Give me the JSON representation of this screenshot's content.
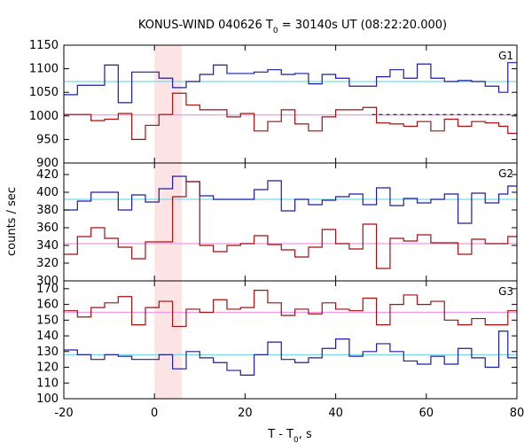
{
  "chart_data": {
    "type": "line",
    "title": "KONUS-WIND 040626 T",
    "title_sub": "0",
    "title_rest": " = 30140s UT (08:22:20.000)",
    "xlabel": "T - T",
    "xlabel_sub": "0",
    "xlabel_rest": ", s",
    "ylabel": "counts / sec",
    "xlim": [
      -20,
      80
    ],
    "x_ticks": [
      -20,
      0,
      20,
      40,
      60,
      80
    ],
    "x_tick_labels": [
      "-20",
      "0",
      "20",
      "40",
      "60",
      "80"
    ],
    "highlight_interval": [
      0,
      6
    ],
    "colors": {
      "red": "#a50f0f",
      "blue": "#1c1ca3",
      "cyan": "#7ad9e8",
      "pink": "#ee9ae8",
      "highlight": "#fde4e4"
    },
    "bin_edges": [
      -20,
      -17,
      -14,
      -11,
      -8,
      -5,
      -2,
      1,
      4,
      7,
      10,
      13,
      16,
      19,
      22,
      25,
      28,
      31,
      34,
      37,
      40,
      43,
      46,
      49,
      52,
      55,
      58,
      61,
      64,
      67,
      70,
      73,
      76,
      78,
      80
    ],
    "panels": [
      {
        "name": "G1",
        "ylim": [
          900,
          1150
        ],
        "y_ticks": [
          900,
          950,
          1000,
          1050,
          1100,
          1150
        ],
        "y_tick_labels": [
          "900",
          "950",
          "1000",
          "1050",
          "1100",
          "1150"
        ],
        "series": [
          {
            "name": "blue",
            "color": "#1c1ca3",
            "background": 1073,
            "background_color": "#7ad9e8",
            "values": [
              1045,
              1065,
              1065,
              1108,
              1028,
              1093,
              1093,
              1080,
              1060,
              1073,
              1088,
              1108,
              1090,
              1090,
              1093,
              1098,
              1088,
              1090,
              1068,
              1088,
              1080,
              1063,
              1063,
              1083,
              1098,
              1080,
              1110,
              1080,
              1073,
              1075,
              1073,
              1063,
              1050,
              1113
            ]
          },
          {
            "name": "red",
            "color": "#a50f0f",
            "background": 1002,
            "background_color": "#ee9ae8",
            "values": [
              1003,
              1003,
              990,
              993,
              1005,
              950,
              980,
              1003,
              1048,
              1023,
              1013,
              1013,
              998,
              1005,
              968,
              988,
              1013,
              983,
              968,
              998,
              1013,
              1013,
              1018,
              985,
              983,
              978,
              988,
              968,
              993,
              978,
              988,
              985,
              978,
              963
            ],
            "dashed_from": 48,
            "dashed_value": 1003
          }
        ]
      },
      {
        "name": "G2",
        "ylim": [
          300,
          433
        ],
        "y_ticks": [
          300,
          320,
          340,
          360,
          380,
          400,
          420
        ],
        "y_tick_labels": [
          "300",
          "320",
          "340",
          "360",
          "380",
          "400",
          "420"
        ],
        "series": [
          {
            "name": "blue",
            "color": "#1c1ca3",
            "background": 392,
            "background_color": "#7ad9e8",
            "values": [
              380,
              390,
              400,
              400,
              380,
              397,
              389,
              404,
              418,
              412,
              396,
              392,
              392,
              392,
              403,
              413,
              379,
              392,
              386,
              391,
              395,
              398,
              386,
              405,
              385,
              393,
              388,
              392,
              398,
              365,
              399,
              388,
              398,
              407
            ]
          },
          {
            "name": "red",
            "color": "#a50f0f",
            "background": 342,
            "background_color": "#ee9ae8",
            "values": [
              330,
              350,
              360,
              348,
              338,
              325,
              344,
              344,
              395,
              412,
              340,
              333,
              340,
              342,
              351,
              341,
              335,
              327,
              338,
              358,
              342,
              336,
              364,
              314,
              348,
              345,
              352,
              343,
              343,
              330,
              347,
              342,
              342,
              350
            ]
          }
        ]
      },
      {
        "name": "G3",
        "ylim": [
          100,
          175
        ],
        "y_ticks": [
          100,
          110,
          120,
          130,
          140,
          150,
          160,
          170
        ],
        "y_tick_labels": [
          "100",
          "110",
          "120",
          "130",
          "140",
          "150",
          "160",
          "170"
        ],
        "series": [
          {
            "name": "red",
            "color": "#a50f0f",
            "background": 155,
            "background_color": "#ee9ae8",
            "values": [
              156,
              152,
              158,
              161,
              165,
              147,
              158,
              162,
              146,
              157,
              155,
              163,
              157,
              158,
              169,
              161,
              153,
              157,
              154,
              161,
              157,
              156,
              164,
              147,
              160,
              166,
              160,
              162,
              150,
              147,
              151,
              147,
              147,
              156
            ]
          },
          {
            "name": "blue",
            "color": "#1c1ca3",
            "background": 128,
            "background_color": "#7ad9e8",
            "values": [
              131,
              128,
              125,
              128,
              127,
              125,
              125,
              128,
              119,
              130,
              126,
              123,
              118,
              115,
              128,
              136,
              125,
              123,
              126,
              132,
              138,
              127,
              130,
              135,
              130,
              124,
              122,
              127,
              122,
              132,
              126,
              120,
              143,
              126
            ]
          }
        ]
      }
    ]
  }
}
